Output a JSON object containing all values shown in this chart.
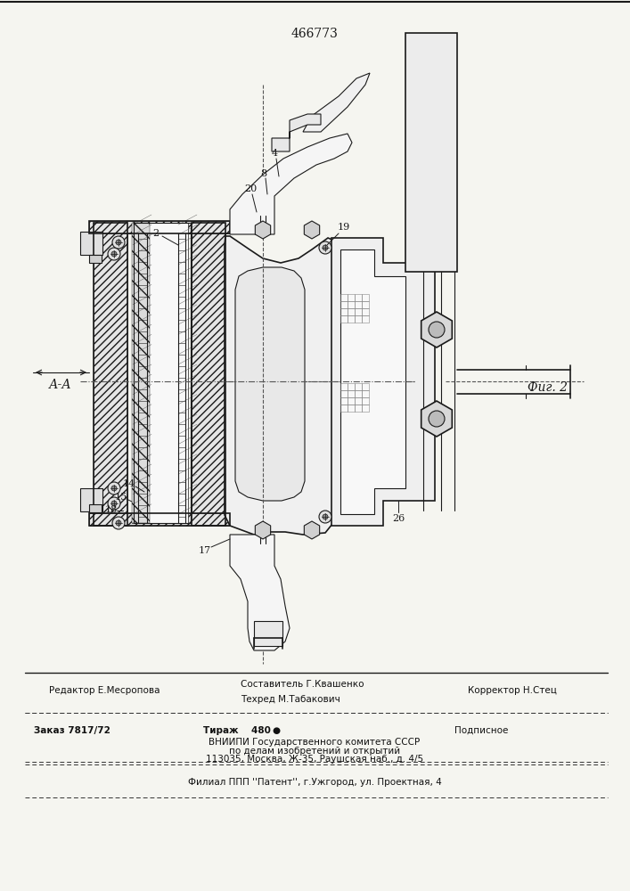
{
  "patent_number": "466773",
  "fig_label": "Фиг. 2",
  "section_label": "А-А",
  "bg_color": "#f5f5f0",
  "line_color": "#1a1a1a",
  "footer": {
    "editor": "Редактор Е.Месропова",
    "compiler": "Составитель Г.Квашенко",
    "techred": "Техред М.Табакович",
    "corrector": "Корректор Н.Стец",
    "order": "Заказ 7817/72",
    "tirazh": "Тираж    480",
    "mark": "●",
    "podpisnoe": "Подписное",
    "vniipи": "ВНИИПИ Государственного комитета СССР",
    "po_delam": "по делам изобретений и открытий",
    "address": "113035, Москва, Ж-35, Раушская наб., д. 4/5",
    "filial": "Филиал ППП ''Патент'', г.Ужгород, ул. Проектная, 4"
  }
}
